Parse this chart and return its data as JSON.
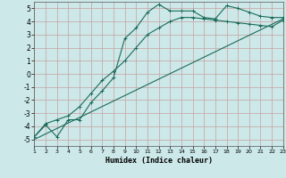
{
  "xlabel": "Humidex (Indice chaleur)",
  "bg_color": "#cce8e8",
  "grid_color": "#b0d0d0",
  "line_color": "#1a6b5a",
  "xlim": [
    1,
    23
  ],
  "ylim": [
    -5.5,
    5.5
  ],
  "xticks": [
    1,
    2,
    3,
    4,
    5,
    6,
    7,
    8,
    9,
    10,
    11,
    12,
    13,
    14,
    15,
    16,
    17,
    18,
    19,
    20,
    21,
    22,
    23
  ],
  "yticks": [
    -5,
    -4,
    -3,
    -2,
    -1,
    0,
    1,
    2,
    3,
    4,
    5
  ],
  "line1_x": [
    1,
    2,
    3,
    4,
    5,
    6,
    7,
    8,
    9,
    10,
    11,
    12,
    13,
    14,
    15,
    16,
    17,
    18,
    19,
    20,
    21,
    22,
    23
  ],
  "line1_y": [
    -4.8,
    -3.8,
    -3.5,
    -3.2,
    -2.5,
    -1.5,
    -0.5,
    0.2,
    1.0,
    2.0,
    3.0,
    3.5,
    4.0,
    4.3,
    4.3,
    4.2,
    4.1,
    4.0,
    3.9,
    3.8,
    3.7,
    3.6,
    4.1
  ],
  "line2_x": [
    1,
    2,
    3,
    4,
    5,
    6,
    7,
    8,
    9,
    10,
    11,
    12,
    13,
    14,
    15,
    16,
    17,
    18,
    19,
    20,
    21,
    22,
    23
  ],
  "line2_y": [
    -4.8,
    -3.9,
    -4.8,
    -3.5,
    -3.5,
    -2.2,
    -1.3,
    -0.3,
    2.7,
    3.5,
    4.7,
    5.3,
    4.8,
    4.8,
    4.8,
    4.3,
    4.2,
    5.2,
    5.0,
    4.7,
    4.4,
    4.3,
    4.3
  ],
  "line3_x": [
    1,
    23
  ],
  "line3_y": [
    -5.0,
    4.2
  ]
}
